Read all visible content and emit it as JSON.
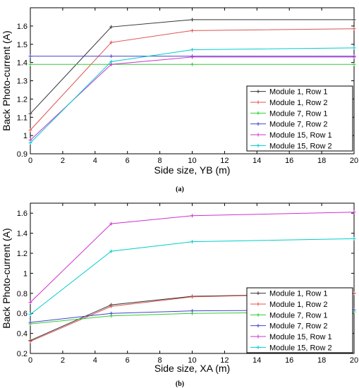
{
  "chart_data": [
    {
      "type": "line",
      "caption": "(a)",
      "xlabel": "Side size, YB (m)",
      "ylabel": "Back Photo-current (A)",
      "xlim": [
        0,
        20
      ],
      "ylim": [
        0.9,
        1.7
      ],
      "xticks": [
        0,
        2,
        4,
        6,
        8,
        10,
        12,
        14,
        16,
        18,
        20
      ],
      "yticks": [
        0.9,
        1.0,
        1.1,
        1.2,
        1.3,
        1.4,
        1.5,
        1.6
      ],
      "ytick_labels": [
        "0.9",
        "1",
        "1.1",
        "1.2",
        "1.3",
        "1.4",
        "1.5",
        "1.6"
      ],
      "grid": false,
      "legend_position": "bottom-right",
      "x": [
        0,
        5,
        10,
        20
      ],
      "series": [
        {
          "name": "Module 1, Row 1",
          "color": "#333333",
          "values": [
            1.12,
            1.595,
            1.635,
            1.635
          ]
        },
        {
          "name": "Module 1, Row 2",
          "color": "#d9534f",
          "values": [
            1.03,
            1.51,
            1.575,
            1.585
          ]
        },
        {
          "name": "Module 7, Row 1",
          "color": "#33cc33",
          "values": [
            1.39,
            1.39,
            1.39,
            1.39
          ]
        },
        {
          "name": "Module 7, Row 2",
          "color": "#4444cc",
          "values": [
            1.435,
            1.435,
            1.435,
            1.435
          ]
        },
        {
          "name": "Module 15, Row 1",
          "color": "#cc33cc",
          "values": [
            0.975,
            1.39,
            1.43,
            1.43
          ]
        },
        {
          "name": "Module 15, Row 2",
          "color": "#00cccc",
          "values": [
            0.96,
            1.405,
            1.47,
            1.48
          ]
        }
      ]
    },
    {
      "type": "line",
      "caption": "(b)",
      "xlabel": "Side size, XA (m)",
      "ylabel": "Back Photo-current (A)",
      "xlim": [
        0,
        20
      ],
      "ylim": [
        0.2,
        1.7
      ],
      "xticks": [
        0,
        2,
        4,
        6,
        8,
        10,
        12,
        14,
        16,
        18,
        20
      ],
      "yticks": [
        0.2,
        0.4,
        0.6,
        0.8,
        1.0,
        1.2,
        1.4,
        1.6
      ],
      "ytick_labels": [
        "0.2",
        "0.4",
        "0.6",
        "0.8",
        "1",
        "1.2",
        "1.4",
        "1.6"
      ],
      "grid": false,
      "legend_position": "bottom-right",
      "x": [
        0,
        5,
        10,
        20
      ],
      "series": [
        {
          "name": "Module 1, Row 1",
          "color": "#333333",
          "values": [
            0.33,
            0.685,
            0.77,
            0.8
          ]
        },
        {
          "name": "Module 1, Row 2",
          "color": "#d9534f",
          "values": [
            0.32,
            0.67,
            0.765,
            0.8
          ]
        },
        {
          "name": "Module 7, Row 1",
          "color": "#33cc33",
          "values": [
            0.495,
            0.575,
            0.6,
            0.615
          ]
        },
        {
          "name": "Module 7, Row 2",
          "color": "#4444cc",
          "values": [
            0.51,
            0.6,
            0.625,
            0.635
          ]
        },
        {
          "name": "Module 15, Row 1",
          "color": "#cc33cc",
          "values": [
            0.71,
            1.495,
            1.575,
            1.61
          ]
        },
        {
          "name": "Module 15, Row 2",
          "color": "#00cccc",
          "values": [
            0.59,
            1.22,
            1.315,
            1.345
          ]
        }
      ]
    }
  ]
}
